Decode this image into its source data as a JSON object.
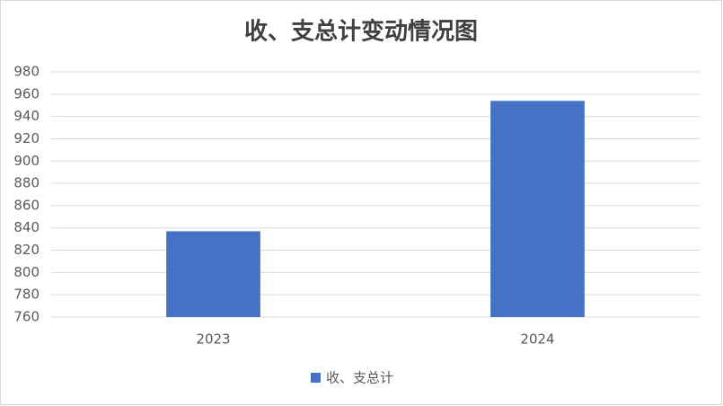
{
  "chart_data": {
    "type": "bar",
    "title": "收、支总计变动情况图",
    "categories": [
      "2023",
      "2024"
    ],
    "series": [
      {
        "name": "收、支总计",
        "color": "#4472c4",
        "values": [
          837,
          954
        ]
      }
    ],
    "ylim": [
      760,
      980
    ],
    "yticks": [
      760,
      780,
      800,
      820,
      840,
      860,
      880,
      900,
      920,
      940,
      960,
      980
    ],
    "grid": true,
    "legend": "bottom"
  }
}
